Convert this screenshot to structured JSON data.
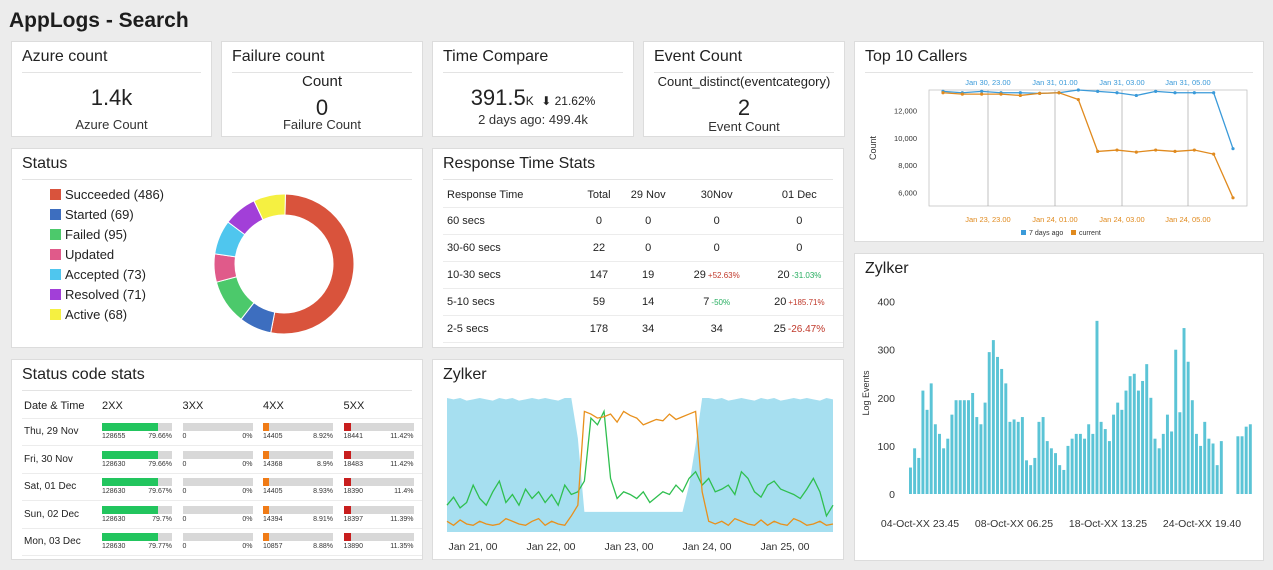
{
  "page": {
    "title": "AppLogs - Search"
  },
  "azure": {
    "title": "Azure count",
    "value": "1.4k",
    "label": "Azure Count"
  },
  "failure": {
    "title": "Failure count",
    "header": "Count",
    "value": "0",
    "label": "Failure Count"
  },
  "time_compare": {
    "title": "Time Compare",
    "value": "391.5",
    "unit": "K",
    "change": "⬇ 21.62%",
    "previous": "2 days ago: 499.4k"
  },
  "event_count": {
    "title": "Event Count",
    "header": "Count_distinct(eventcategory)",
    "value": "2",
    "label": "Event Count"
  },
  "status": {
    "title": "Status",
    "items": [
      {
        "label": "Succeeded (486)",
        "value": 486,
        "color": "#d9533c"
      },
      {
        "label": "Started (69)",
        "value": 69,
        "color": "#3d6ebf"
      },
      {
        "label": "Failed (95)",
        "value": 95,
        "color": "#4cc96b"
      },
      {
        "label": "Updated",
        "value": 60,
        "color": "#e05a8a"
      },
      {
        "label": "Accepted (73)",
        "value": 73,
        "color": "#4fc6ee"
      },
      {
        "label": "Resolved (71)",
        "value": 71,
        "color": "#a23fd8"
      },
      {
        "label": "Active (68)",
        "value": 68,
        "color": "#f5f041"
      }
    ]
  },
  "response_time": {
    "title": "Response Time Stats",
    "headers": [
      "Response Time",
      "Total",
      "29 Nov",
      "30Nov",
      "01 Dec"
    ],
    "rows": [
      {
        "range": "60 secs",
        "total": "0",
        "d1": "0",
        "d2": "0",
        "d2c": "",
        "d2dir": "",
        "d3": "0",
        "d3c": "",
        "d3dir": ""
      },
      {
        "range": "30-60 secs",
        "total": "22",
        "d1": "0",
        "d2": "0",
        "d2c": "",
        "d2dir": "",
        "d3": "0",
        "d3c": "",
        "d3dir": ""
      },
      {
        "range": "10-30 secs",
        "total": "147",
        "d1": "19",
        "d2": "29",
        "d2c": "+52.63%",
        "d2dir": "up",
        "d3": "20",
        "d3c": "-31.03%",
        "d3dir": "down"
      },
      {
        "range": "5-10 secs",
        "total": "59",
        "d1": "14",
        "d2": "7",
        "d2c": "-50%",
        "d2dir": "down",
        "d3": "20",
        "d3c": "+185.71%",
        "d3dir": "up"
      },
      {
        "range": "2-5 secs",
        "total": "178",
        "d1": "34",
        "d2": "34",
        "d2c": "",
        "d2dir": "",
        "d3": "25",
        "d3c": "-26.47%",
        "d3dir": "upbig"
      }
    ]
  },
  "status_code": {
    "title": "Status code stats",
    "headers": [
      "Date & Time",
      "2XX",
      "3XX",
      "4XX",
      "5XX"
    ],
    "colors": {
      "2XX": "#22c55e",
      "3XX": "#9ca3af",
      "4XX": "#f07b16",
      "5XX": "#c81e1e"
    },
    "rows": [
      {
        "date": "Thu, 29 Nov",
        "c2": "128655",
        "p2": "79.66%",
        "c3": "0",
        "p3": "0%",
        "c4": "14405",
        "p4": "8.92%",
        "c5": "18441",
        "p5": "11.42%"
      },
      {
        "date": "Fri, 30 Nov",
        "c2": "128630",
        "p2": "79.66%",
        "c3": "0",
        "p3": "0%",
        "c4": "14368",
        "p4": "8.9%",
        "c5": "18483",
        "p5": "11.42%"
      },
      {
        "date": "Sat, 01 Dec",
        "c2": "128630",
        "p2": "79.67%",
        "c3": "0",
        "p3": "0%",
        "c4": "14405",
        "p4": "8.93%",
        "c5": "18390",
        "p5": "11.4%"
      },
      {
        "date": "Sun, 02 Dec",
        "c2": "128630",
        "p2": "79.7%",
        "c3": "0",
        "p3": "0%",
        "c4": "14394",
        "p4": "8.91%",
        "c5": "18397",
        "p5": "11.39%"
      },
      {
        "date": "Mon, 03 Dec",
        "c2": "128630",
        "p2": "79.77%",
        "c3": "0",
        "p3": "0%",
        "c4": "10857",
        "p4": "8.88%",
        "c5": "13890",
        "p5": "11.35%"
      }
    ]
  },
  "top_callers": {
    "title": "Top 10 Callers",
    "legend": [
      "7 days ago",
      "current"
    ],
    "colors": [
      "#3a9ad9",
      "#e08a1e"
    ]
  },
  "zylker_mid": {
    "title": "Zylker",
    "colors": {
      "area": "#a6dff0",
      "green": "#2fbf4f",
      "orange": "#e8901c"
    }
  },
  "zylker_right": {
    "title": "Zylker",
    "color": "#5bc4d6"
  },
  "chart_data": [
    {
      "type": "pie",
      "categories": [
        "Succeeded",
        "Started",
        "Failed",
        "Updated",
        "Accepted",
        "Resolved",
        "Active"
      ],
      "values": [
        486,
        69,
        95,
        60,
        73,
        71,
        68
      ],
      "donut": true,
      "legend": "left"
    },
    {
      "type": "line",
      "top_x_ticks": [
        "Jan 30, 23.00",
        "Jan 31, 01.00",
        "Jan 31, 03.00",
        "Jan 31, 05.00"
      ],
      "bottom_x_ticks": [
        "Jan 23, 23.00",
        "Jan 24, 01.00",
        "Jan 24, 03.00",
        "Jan 24, 05.00"
      ],
      "ylabel": "Count",
      "y_ticks": [
        "6,000",
        "8,000",
        "10,000",
        "12,000"
      ],
      "ylim": [
        5000,
        13500
      ],
      "series": [
        {
          "name": "7 days ago",
          "values": [
            13400,
            13300,
            13400,
            13300,
            13300,
            13250,
            13300,
            13500,
            13400,
            13300,
            13100,
            13400,
            13300,
            13300,
            13300,
            9200
          ]
        },
        {
          "name": "current",
          "values": [
            13300,
            13200,
            13200,
            13200,
            13100,
            13250,
            13300,
            12800,
            9000,
            9100,
            8950,
            9100,
            9000,
            9100,
            8800,
            5600
          ]
        }
      ],
      "legend": "bottom"
    },
    {
      "type": "area",
      "x_ticks": [
        "Jan 21, 00",
        "Jan 22, 00",
        "Jan 23, 00",
        "Jan 24, 00",
        "Jan 25, 00"
      ],
      "area": [
        100,
        99,
        100,
        98,
        99,
        100,
        99,
        98,
        100,
        99,
        100,
        98,
        99,
        100,
        99,
        100,
        99,
        98,
        100,
        100,
        70,
        15,
        15,
        15,
        15,
        15,
        15,
        15,
        15,
        15,
        15,
        15,
        15,
        15,
        15,
        15,
        15,
        35,
        65,
        100,
        100,
        99,
        100,
        98,
        99,
        100,
        99,
        98,
        100,
        99,
        100,
        98,
        99,
        100,
        99,
        100,
        99,
        98,
        100,
        99
      ],
      "series": [
        {
          "values": [
            20,
            26,
            18,
            22,
            35,
            25,
            20,
            30,
            38,
            22,
            28,
            20,
            32,
            25,
            30,
            22,
            28,
            20,
            35,
            28,
            30,
            38,
            85,
            80,
            90,
            40,
            25,
            30,
            28,
            25,
            30,
            22,
            26,
            30,
            28,
            35,
            30,
            40,
            45,
            35,
            40,
            30,
            32,
            35,
            28,
            45,
            40,
            30,
            26,
            35,
            38,
            32,
            30,
            28,
            25,
            32,
            40,
            30,
            12,
            20
          ]
        },
        {
          "values": [
            8,
            5,
            9,
            6,
            5,
            8,
            6,
            5,
            6,
            10,
            8,
            6,
            5,
            8,
            10,
            5,
            8,
            6,
            5,
            12,
            20,
            90,
            88,
            85,
            86,
            88,
            82,
            90,
            87,
            85,
            80,
            82,
            84,
            83,
            88,
            84,
            86,
            88,
            90,
            30,
            8,
            6,
            8,
            5,
            10,
            8,
            6,
            5,
            9,
            5,
            8,
            6,
            5,
            10,
            8,
            5,
            6,
            8,
            5,
            6
          ]
        }
      ]
    },
    {
      "type": "bar",
      "x_ticks": [
        "04-Oct-XX 23.45",
        "08-Oct-XX 06.25",
        "18-Oct-XX 13.25",
        "24-Oct-XX 19.40"
      ],
      "ylabel": "Log Events",
      "y_ticks": [
        "0",
        "100",
        "200",
        "300",
        "400"
      ],
      "ylim": [
        0,
        420
      ],
      "values": [
        55,
        95,
        75,
        215,
        175,
        230,
        145,
        125,
        95,
        115,
        165,
        195,
        195,
        195,
        195,
        210,
        160,
        145,
        190,
        295,
        320,
        285,
        260,
        230,
        150,
        155,
        150,
        160,
        70,
        60,
        75,
        150,
        160,
        110,
        95,
        85,
        60,
        50,
        100,
        115,
        125,
        125,
        115,
        145,
        125,
        360,
        150,
        135,
        110,
        165,
        190,
        175,
        215,
        245,
        250,
        215,
        235,
        270,
        200,
        115,
        95,
        125,
        165,
        130,
        300,
        170,
        345,
        275,
        195,
        125,
        100,
        150,
        115,
        105,
        60,
        110,
        0,
        0,
        0,
        120,
        120,
        140,
        145
      ]
    }
  ]
}
